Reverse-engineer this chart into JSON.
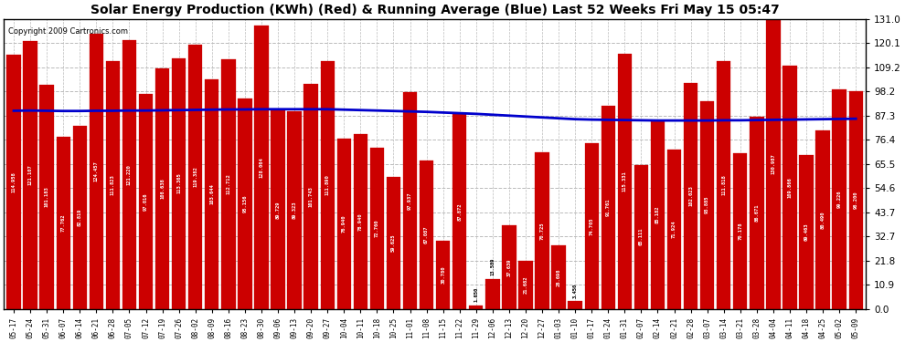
{
  "title": "Solar Energy Production (KWh) (Red) & Running Average (Blue) Last 52 Weeks Fri May 15 05:47",
  "copyright": "Copyright 2009 Cartronics.com",
  "bar_values": [
    114.958,
    121.107,
    101.183,
    77.762,
    82.8187,
    124.457,
    111.823,
    121.22,
    97.016,
    108.638,
    113.365,
    119.382,
    103.644,
    112.712,
    95.156,
    128.064,
    89.729,
    89.323,
    101.743,
    111.89,
    76.94,
    78.94,
    72.76,
    59.625,
    97.937,
    67.087,
    30.78,
    87.872,
    1.65,
    13.589,
    37.639,
    21.682,
    70.725,
    28.698,
    3.45,
    74.705,
    91.761,
    115.331,
    65.111,
    85.182,
    71.924,
    102.023,
    93.885,
    111.818,
    70.178,
    86.671,
    130.987,
    109.866,
    69.463,
    80.49,
    99.226,
    98.2
  ],
  "x_labels": [
    "05-17",
    "05-24",
    "05-31",
    "06-07",
    "06-14",
    "06-21",
    "06-28",
    "07-05",
    "07-12",
    "07-19",
    "07-26",
    "08-02",
    "08-09",
    "08-16",
    "08-23",
    "08-30",
    "09-06",
    "09-13",
    "09-20",
    "09-27",
    "10-04",
    "10-11",
    "10-18",
    "10-25",
    "11-01",
    "11-08",
    "11-15",
    "11-22",
    "11-29",
    "12-06",
    "12-13",
    "12-20",
    "12-27",
    "01-03",
    "01-10",
    "01-17",
    "01-24",
    "01-31",
    "02-07",
    "02-14",
    "02-21",
    "02-28",
    "03-07",
    "03-14",
    "03-21",
    "03-28",
    "04-04",
    "04-11",
    "04-18",
    "04-25",
    "05-02",
    "05-09"
  ],
  "running_avg": [
    89.5,
    89.6,
    89.5,
    89.4,
    89.4,
    89.5,
    89.5,
    89.6,
    89.6,
    89.7,
    89.8,
    89.9,
    90.0,
    90.1,
    90.1,
    90.2,
    90.2,
    90.2,
    90.2,
    90.2,
    90.0,
    89.8,
    89.6,
    89.4,
    89.2,
    89.0,
    88.7,
    88.4,
    88.1,
    87.7,
    87.3,
    86.9,
    86.5,
    86.1,
    85.7,
    85.5,
    85.4,
    85.3,
    85.2,
    85.1,
    85.1,
    85.1,
    85.1,
    85.2,
    85.2,
    85.3,
    85.4,
    85.5,
    85.6,
    85.7,
    85.8,
    85.9
  ],
  "bar_color": "#cc0000",
  "bar_edge_color": "#cc0000",
  "line_color": "#0000cc",
  "background_color": "#ffffff",
  "plot_bg_color": "#ffffff",
  "grid_color": "#bbbbbb",
  "yticks": [
    0.0,
    10.9,
    21.8,
    32.7,
    43.7,
    54.6,
    65.5,
    76.4,
    87.3,
    98.2,
    109.2,
    120.1,
    131.0
  ],
  "ymax": 131.0,
  "ymin": 0.0,
  "title_fontsize": 10,
  "tick_fontsize": 7.5,
  "label_fontsize": 5.5
}
